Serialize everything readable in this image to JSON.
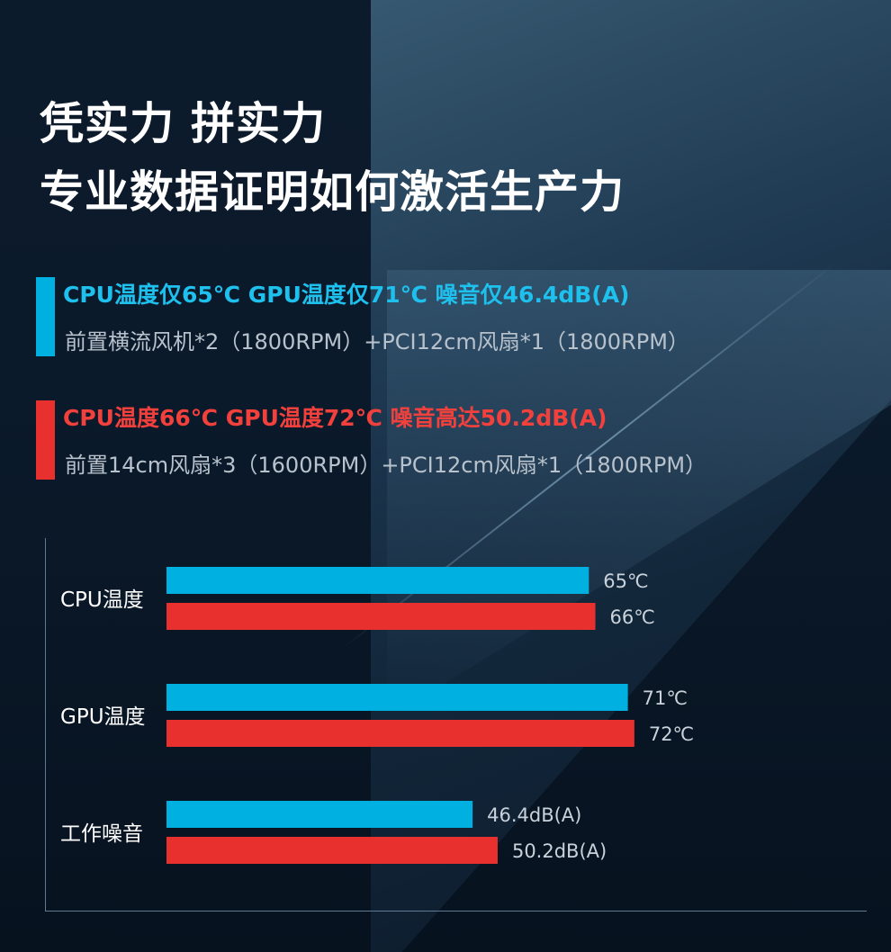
{
  "headline": {
    "line1": "凭实力 拼实力",
    "line2": "专业数据证明如何激活生产力"
  },
  "specs": [
    {
      "title": "CPU温度仅65℃  GPU温度仅71℃  噪音仅46.4dB(A)",
      "subtitle": "前置横流风机*2（1800RPM）+PCI12cm风扇*1（1800RPM）",
      "color": "#00b0e0"
    },
    {
      "title": "CPU温度66℃  GPU温度72℃  噪音高达50.2dB(A)",
      "subtitle": "前置14cm风扇*3（1600RPM）+PCI12cm风扇*1（1800RPM）",
      "color": "#e8312f"
    }
  ],
  "chart_data": {
    "type": "bar",
    "orientation": "horizontal",
    "categories": [
      "CPU温度",
      "GPU温度",
      "工作噪音"
    ],
    "series": [
      {
        "color": "#00b0e0",
        "values": [
          65,
          71,
          46.4
        ],
        "labels": [
          "65℃",
          "71℃",
          "46.4dB(A)"
        ]
      },
      {
        "color": "#e8312f",
        "values": [
          66,
          72,
          50.2
        ],
        "labels": [
          "66℃",
          "72℃",
          "50.2dB(A)"
        ]
      }
    ],
    "grid": false,
    "legend": "none"
  }
}
